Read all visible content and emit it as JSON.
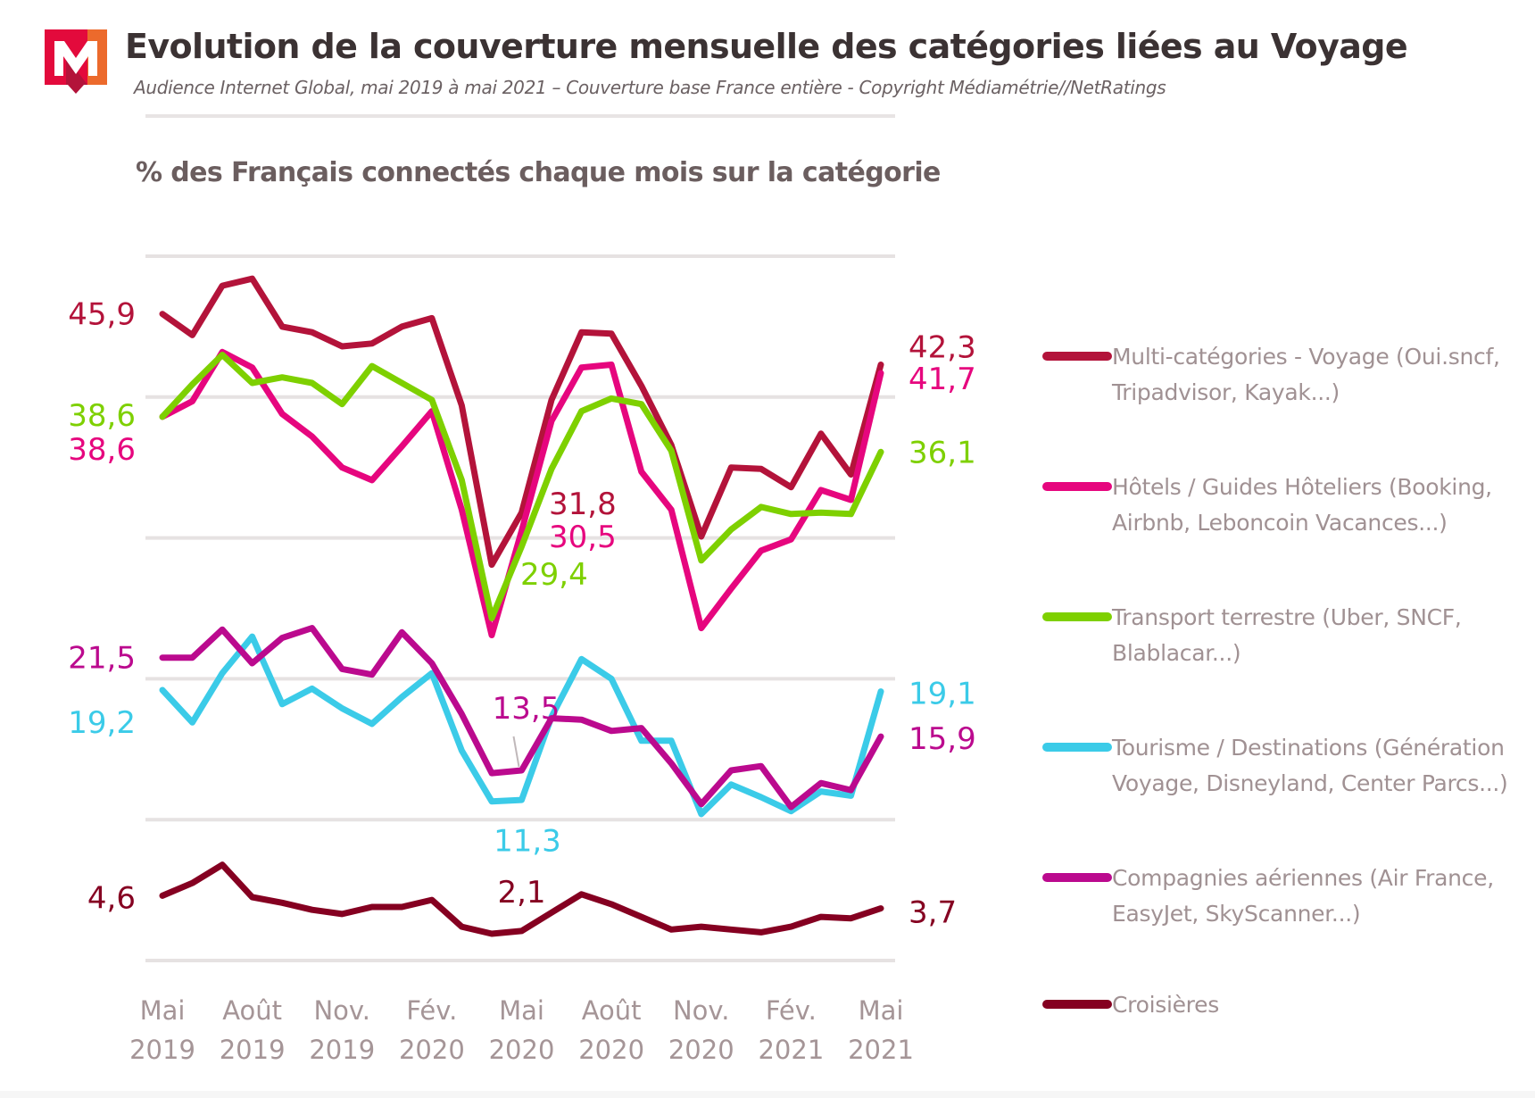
{
  "header": {
    "title": "Evolution de la couverture mensuelle des catégories liées au Voyage",
    "subtitle": "Audience Internet Global, mai 2019 à mai 2021 – Couverture base France entière - Copyright Médiamétrie//NetRatings",
    "logo": "mediametrie-logo-icon",
    "brand_colors": {
      "red": "#e30a3c",
      "orange": "#ec6a2c",
      "dark_red": "#b3133a"
    }
  },
  "chart_data": {
    "type": "line",
    "title": "% des Français connectés chaque mois sur la catégorie",
    "xlabel": "",
    "ylabel": "% des Français connectés chaque mois sur la catégorie",
    "ylim": [
      0,
      50
    ],
    "grid": true,
    "y_gridlines": [
      0,
      10,
      20,
      30,
      40,
      50
    ],
    "legend_position": "right",
    "x": [
      "Mai 2019",
      "Juin 2019",
      "Juil. 2019",
      "Août 2019",
      "Sept. 2019",
      "Oct. 2019",
      "Nov. 2019",
      "Déc. 2019",
      "Janv. 2020",
      "Fév. 2020",
      "Mars 2020",
      "Avr. 2020",
      "Mai 2020",
      "Juin 2020",
      "Juil. 2020",
      "Août 2020",
      "Sept. 2020",
      "Oct. 2020",
      "Nov. 2020",
      "Déc. 2020",
      "Janv. 2021",
      "Fév. 2021",
      "Mars 2021",
      "Avr. 2021",
      "Mai 2021"
    ],
    "x_ticks": [
      {
        "index": 0,
        "line1": "Mai",
        "line2": "2019"
      },
      {
        "index": 3,
        "line1": "Août",
        "line2": "2019"
      },
      {
        "index": 6,
        "line1": "Nov.",
        "line2": "2019"
      },
      {
        "index": 9,
        "line1": "Fév.",
        "line2": "2020"
      },
      {
        "index": 12,
        "line1": "Mai",
        "line2": "2020"
      },
      {
        "index": 15,
        "line1": "Août",
        "line2": "2020"
      },
      {
        "index": 18,
        "line1": "Nov.",
        "line2": "2020"
      },
      {
        "index": 21,
        "line1": "Fév.",
        "line2": "2021"
      },
      {
        "index": 24,
        "line1": "Mai",
        "line2": "2021"
      }
    ],
    "series": [
      {
        "name": "Multi-catégories - Voyage (Oui.sncf, Tripadvisor, Kayak...)",
        "color": "#b3133a",
        "values": [
          45.9,
          44.4,
          47.9,
          48.4,
          45.0,
          44.6,
          43.6,
          43.8,
          45.0,
          45.6,
          39.4,
          28.1,
          31.8,
          39.8,
          44.6,
          44.5,
          40.8,
          36.6,
          30.1,
          35.0,
          34.9,
          33.6,
          37.4,
          34.5,
          42.3
        ],
        "labels": [
          {
            "index": 0,
            "text": "45,9",
            "side": "left"
          },
          {
            "index": 12,
            "text": "31,8",
            "side": "mid"
          },
          {
            "index": 24,
            "text": "42,3",
            "side": "right"
          }
        ]
      },
      {
        "name": "Hôtels / Guides Hôteliers (Booking, Airbnb, Leboncoin Vacances...)",
        "color": "#e6067e",
        "values": [
          38.6,
          39.7,
          43.2,
          42.1,
          38.8,
          37.2,
          35.0,
          34.1,
          36.5,
          39.0,
          32.0,
          23.1,
          30.5,
          38.3,
          42.1,
          42.3,
          34.7,
          32.0,
          23.6,
          26.4,
          29.1,
          29.9,
          33.4,
          32.7,
          41.7
        ],
        "labels": [
          {
            "index": 0,
            "text": "38,6",
            "side": "left"
          },
          {
            "index": 12,
            "text": "30,5",
            "side": "mid"
          },
          {
            "index": 24,
            "text": "41,7",
            "side": "right"
          }
        ]
      },
      {
        "name": "Transport terrestre (Uber, SNCF, Blablacar...)",
        "color": "#7ed000",
        "values": [
          38.6,
          40.9,
          43.0,
          41.0,
          41.4,
          41.0,
          39.5,
          42.2,
          41.0,
          39.8,
          34.1,
          24.3,
          29.4,
          34.9,
          39.0,
          39.9,
          39.5,
          36.2,
          28.4,
          30.6,
          32.2,
          31.7,
          31.8,
          31.7,
          36.1
        ],
        "labels": [
          {
            "index": 0,
            "text": "38,6",
            "side": "left"
          },
          {
            "index": 12,
            "text": "29,4",
            "side": "mid"
          },
          {
            "index": 24,
            "text": "36,1",
            "side": "right"
          }
        ]
      },
      {
        "name": "Tourisme / Destinations (Génération Voyage, Disneyland, Center Parcs...)",
        "color": "#3bcbe8",
        "values": [
          19.2,
          16.9,
          20.4,
          23.0,
          18.2,
          19.3,
          17.9,
          16.8,
          18.7,
          20.4,
          14.9,
          11.3,
          11.4,
          17.3,
          21.4,
          20.0,
          15.6,
          15.6,
          10.4,
          12.5,
          11.6,
          10.6,
          12.0,
          11.7,
          19.1
        ],
        "labels": [
          {
            "index": 0,
            "text": "19,2",
            "side": "left"
          },
          {
            "index": 11,
            "text": "11,3",
            "side": "below"
          },
          {
            "index": 24,
            "text": "19,1",
            "side": "right"
          }
        ]
      },
      {
        "name": "Compagnies aériennes (Air France, EasyJet, SkyScanner...)",
        "color": "#bb0a8e",
        "values": [
          21.5,
          21.5,
          23.5,
          21.1,
          22.9,
          23.6,
          20.7,
          20.3,
          23.3,
          21.1,
          17.5,
          13.3,
          13.5,
          17.2,
          17.1,
          16.3,
          16.5,
          14.0,
          11.1,
          13.5,
          13.8,
          10.9,
          12.6,
          12.1,
          15.9
        ],
        "labels": [
          {
            "index": 0,
            "text": "21,5",
            "side": "left"
          },
          {
            "index": 12,
            "text": "13,5",
            "side": "above-leader"
          },
          {
            "index": 24,
            "text": "15,9",
            "side": "right"
          }
        ]
      },
      {
        "name": "Croisières",
        "color": "#850021",
        "values": [
          4.6,
          5.5,
          6.8,
          4.5,
          4.1,
          3.6,
          3.3,
          3.8,
          3.8,
          4.3,
          2.4,
          1.9,
          2.1,
          3.4,
          4.7,
          4.0,
          3.1,
          2.2,
          2.4,
          2.2,
          2.0,
          2.4,
          3.1,
          3.0,
          3.7
        ],
        "labels": [
          {
            "index": 0,
            "text": "4,6",
            "side": "left"
          },
          {
            "index": 12,
            "text": "2,1",
            "side": "above"
          },
          {
            "index": 24,
            "text": "3,7",
            "side": "right"
          }
        ]
      }
    ]
  },
  "legend": {
    "items": [
      {
        "label": "Multi-catégories - Voyage (Oui.sncf, Tripadvisor, Kayak...)",
        "color": "#b3133a"
      },
      {
        "label": "Hôtels / Guides Hôteliers (Booking, Airbnb, Leboncoin Vacances...)",
        "color": "#e6067e"
      },
      {
        "label": "Transport terrestre (Uber, SNCF, Blablacar...)",
        "color": "#7ed000"
      },
      {
        "label": "Tourisme / Destinations (Génération Voyage, Disneyland, Center Parcs...)",
        "color": "#3bcbe8"
      },
      {
        "label": "Compagnies aériennes (Air France, EasyJet, SkyScanner...)",
        "color": "#bb0a8e"
      },
      {
        "label": "Croisières",
        "color": "#850021"
      }
    ]
  }
}
